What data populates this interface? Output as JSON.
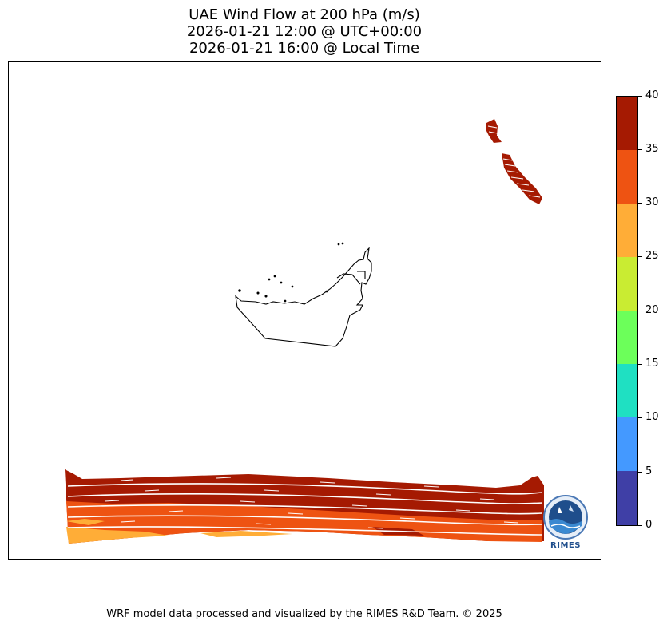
{
  "title": {
    "line1": "UAE Wind Flow at 200 hPa (m/s)",
    "line2": "2026-01-21 12:00 @ UTC+00:00",
    "line3": "2026-01-21 16:00 @ Local Time"
  },
  "colorbar": {
    "levels": [
      {
        "label": "0",
        "color": "#3f3fa6"
      },
      {
        "label": "5",
        "color": "#4499ff"
      },
      {
        "label": "10",
        "color": "#1fe0c2"
      },
      {
        "label": "15",
        "color": "#6cff5a"
      },
      {
        "label": "20",
        "color": "#c9ec32"
      },
      {
        "label": "25",
        "color": "#ffad37"
      },
      {
        "label": "30",
        "color": "#ee5312"
      },
      {
        "label": "35",
        "color": "#a51a02"
      },
      {
        "label": "40",
        "color": null
      }
    ]
  },
  "logo": {
    "name": "rimes-logo",
    "text": "RIMES"
  },
  "footer": "WRF model data processed and visualized by the RIMES R&D Team. © 2025"
}
